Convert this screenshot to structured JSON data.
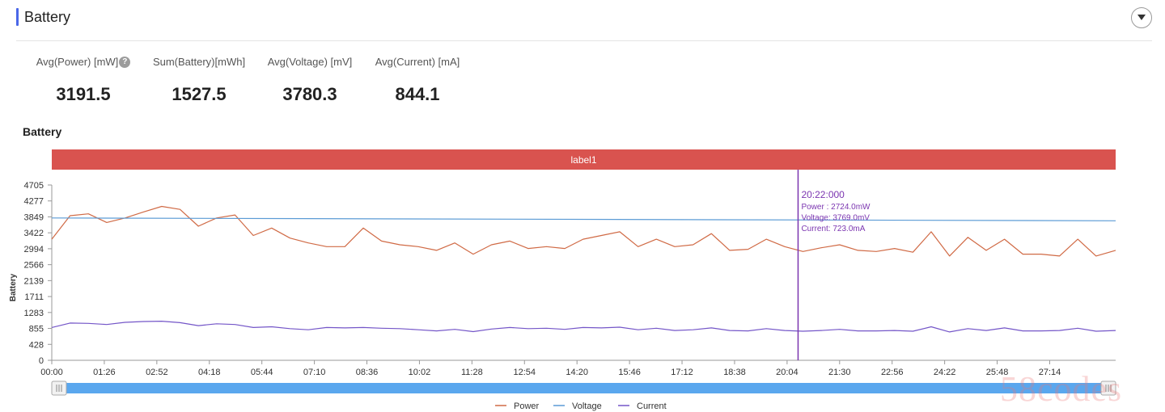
{
  "panel": {
    "title": "Battery"
  },
  "stats": [
    {
      "label": "Avg(Power) [mW]",
      "value": "3191.5",
      "help": true
    },
    {
      "label": "Sum(Battery)[mWh]",
      "value": "1527.5"
    },
    {
      "label": "Avg(Voltage) [mV]",
      "value": "3780.3"
    },
    {
      "label": "Avg(Current) [mA]",
      "value": "844.1"
    }
  ],
  "chart_title": "Battery",
  "chart_data": {
    "type": "line",
    "title": "Battery",
    "ylabel": "Battery",
    "xlabel": "",
    "band_label": "label1",
    "ylim": [
      0,
      4705
    ],
    "yticks": [
      "0",
      "428",
      "855",
      "1283",
      "1711",
      "2139",
      "2566",
      "2994",
      "3422",
      "3849",
      "4277",
      "4705"
    ],
    "xticks": [
      "00:00",
      "01:26",
      "02:52",
      "04:18",
      "05:44",
      "07:10",
      "08:36",
      "10:02",
      "11:28",
      "12:54",
      "14:20",
      "15:46",
      "17:12",
      "18:38",
      "20:04",
      "21:30",
      "22:56",
      "24:22",
      "25:48",
      "27:14"
    ],
    "x_step_seconds": 86,
    "x_end_seconds": 1742,
    "legend": {
      "position": "bottom-center"
    },
    "colors": {
      "Power": "#d06a45",
      "Voltage": "#5b9bd5",
      "Current": "#7456c8",
      "band": "#d9534f",
      "cursor": "#7b35b0",
      "slider": "#5aa7ee"
    },
    "series": [
      {
        "name": "Power",
        "x": [
          0,
          30,
          60,
          90,
          120,
          150,
          180,
          210,
          240,
          270,
          300,
          330,
          360,
          390,
          420,
          450,
          480,
          510,
          540,
          570,
          600,
          630,
          660,
          690,
          720,
          750,
          780,
          810,
          840,
          870,
          900,
          930,
          960,
          990,
          1020,
          1050,
          1080,
          1110,
          1140,
          1170,
          1200,
          1230,
          1260,
          1290,
          1320,
          1350,
          1380,
          1410,
          1440,
          1470,
          1500,
          1530,
          1560,
          1590,
          1620,
          1650,
          1680,
          1710,
          1742
        ],
        "values": [
          3250,
          3880,
          3930,
          3700,
          3820,
          3980,
          4130,
          4050,
          3600,
          3820,
          3900,
          3350,
          3550,
          3280,
          3150,
          3050,
          3050,
          3550,
          3200,
          3100,
          3050,
          2950,
          3150,
          2850,
          3100,
          3200,
          3000,
          3050,
          3000,
          3250,
          3350,
          3450,
          3050,
          3250,
          3050,
          3100,
          3400,
          2950,
          2980,
          3250,
          3050,
          2920,
          3020,
          3100,
          2950,
          2920,
          3000,
          2900,
          3450,
          2800,
          3300,
          2950,
          3250,
          2850,
          2850,
          2800,
          3250,
          2800,
          2950
        ]
      },
      {
        "name": "Voltage",
        "x": [
          0,
          1742
        ],
        "values": [
          3820,
          3745
        ]
      },
      {
        "name": "Current",
        "x": [
          0,
          30,
          60,
          90,
          120,
          150,
          180,
          210,
          240,
          270,
          300,
          330,
          360,
          390,
          420,
          450,
          480,
          510,
          540,
          570,
          600,
          630,
          660,
          690,
          720,
          750,
          780,
          810,
          840,
          870,
          900,
          930,
          960,
          990,
          1020,
          1050,
          1080,
          1110,
          1140,
          1170,
          1200,
          1230,
          1260,
          1290,
          1320,
          1350,
          1380,
          1410,
          1440,
          1470,
          1500,
          1530,
          1560,
          1590,
          1620,
          1650,
          1680,
          1710,
          1742
        ],
        "values": [
          880,
          1000,
          990,
          960,
          1020,
          1040,
          1050,
          1010,
          930,
          980,
          960,
          880,
          900,
          850,
          820,
          880,
          870,
          880,
          860,
          850,
          820,
          790,
          830,
          770,
          840,
          880,
          850,
          860,
          830,
          880,
          870,
          890,
          820,
          860,
          800,
          820,
          870,
          800,
          790,
          850,
          800,
          780,
          800,
          830,
          790,
          790,
          800,
          780,
          900,
          760,
          850,
          800,
          870,
          790,
          790,
          800,
          860,
          780,
          800
        ]
      }
    ],
    "tooltip": {
      "time": "20:22:000",
      "time_seconds": 1222,
      "lines": [
        "Power  : 2724.0mW",
        "Voltage: 3769.0mV",
        "Current: 723.0mA"
      ]
    }
  }
}
